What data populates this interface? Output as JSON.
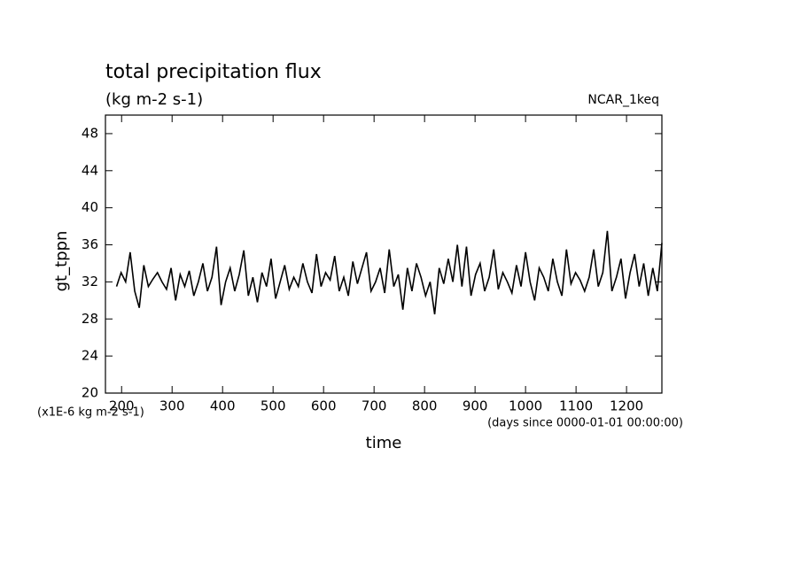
{
  "chart_data": {
    "type": "line",
    "title": "total precipitation flux",
    "subtitle": "(kg m-2 s-1)",
    "annotation": "NCAR_1keq",
    "y_label": "gt_tppn",
    "y_unit": "(x1E-6 kg m-2 s-1)",
    "x_label": "time",
    "x_unit": "(days since 0000-01-01 00:00:00)",
    "x": [
      190,
      199,
      208,
      217,
      226,
      235,
      244,
      253,
      262,
      271,
      280,
      289,
      298,
      307,
      316,
      325,
      334,
      343,
      352,
      361,
      370,
      379,
      388,
      397,
      406,
      415,
      424,
      433,
      442,
      451,
      460,
      469,
      478,
      487,
      496,
      505,
      514,
      523,
      532,
      541,
      550,
      559,
      568,
      577,
      586,
      595,
      604,
      613,
      622,
      631,
      640,
      649,
      658,
      667,
      676,
      685,
      694,
      703,
      712,
      721,
      730,
      739,
      748,
      757,
      766,
      775,
      784,
      793,
      802,
      811,
      820,
      829,
      838,
      847,
      856,
      865,
      874,
      883,
      892,
      901,
      910,
      919,
      928,
      937,
      946,
      955,
      964,
      973,
      982,
      991,
      1000,
      1009,
      1018,
      1027,
      1036,
      1045,
      1054,
      1063,
      1072,
      1081,
      1090,
      1099,
      1108,
      1117,
      1126,
      1135,
      1144,
      1153,
      1162,
      1171,
      1180,
      1189,
      1198,
      1207,
      1216,
      1225,
      1234,
      1243,
      1252,
      1261,
      1270
    ],
    "series": [
      {
        "name": "gt_tppn",
        "color": "#000000",
        "values": [
          31.5,
          33.0,
          32.0,
          35.2,
          31.0,
          29.2,
          33.8,
          31.5,
          32.3,
          33.0,
          32.0,
          31.2,
          33.5,
          30.0,
          32.8,
          31.5,
          33.2,
          30.5,
          32.0,
          34.0,
          31.0,
          32.5,
          35.8,
          29.5,
          32.0,
          33.5,
          31.0,
          32.8,
          35.4,
          30.5,
          32.5,
          29.8,
          33.0,
          31.5,
          34.5,
          30.2,
          32.0,
          33.8,
          31.2,
          32.5,
          31.5,
          34.0,
          32.0,
          30.8,
          35.0,
          31.5,
          33.0,
          32.2,
          34.8,
          31.0,
          32.5,
          30.5,
          34.2,
          31.8,
          33.5,
          35.2,
          31.0,
          32.0,
          33.5,
          30.8,
          35.5,
          31.5,
          32.8,
          29.0,
          33.5,
          31.0,
          34.0,
          32.5,
          30.5,
          32.0,
          28.5,
          33.5,
          31.8,
          34.5,
          32.0,
          36.0,
          31.5,
          35.8,
          30.5,
          32.8,
          34.0,
          31.0,
          32.5,
          35.5,
          31.2,
          33.0,
          32.0,
          30.8,
          33.8,
          31.5,
          35.2,
          32.0,
          30.0,
          33.5,
          32.5,
          31.0,
          34.5,
          32.0,
          30.5,
          35.5,
          31.8,
          33.0,
          32.2,
          31.0,
          32.5,
          35.5,
          31.5,
          33.0,
          37.5,
          31.0,
          32.5,
          34.5,
          30.2,
          33.0,
          35.0,
          31.5,
          34.0,
          30.5,
          33.5,
          31.0,
          36.2
        ]
      }
    ],
    "xlim": [
      168,
      1270
    ],
    "xticks": [
      200,
      300,
      400,
      500,
      600,
      700,
      800,
      900,
      1000,
      1100,
      1200
    ],
    "ylim": [
      20,
      50
    ],
    "yticks": [
      20,
      24,
      28,
      32,
      36,
      40,
      44,
      48
    ]
  }
}
